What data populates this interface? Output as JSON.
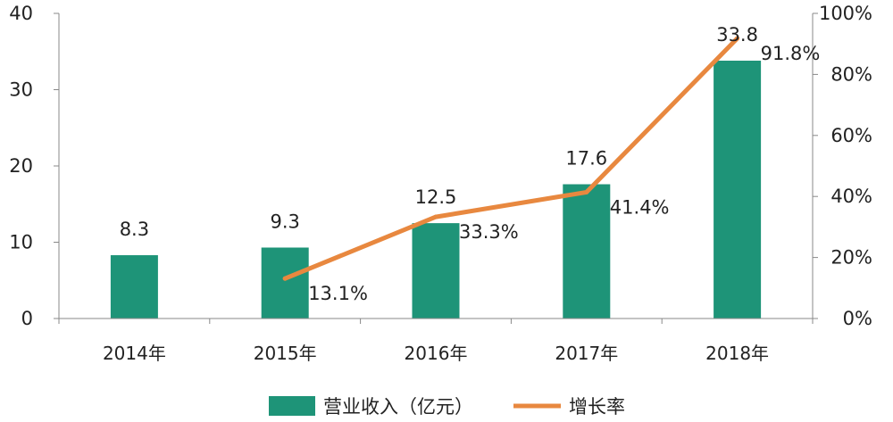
{
  "chart_data": {
    "type": "bar+line",
    "title": "",
    "categories": [
      "2014年",
      "2015年",
      "2016年",
      "2017年",
      "2018年"
    ],
    "series": [
      {
        "name": "营业收入（亿元）",
        "type": "bar",
        "axis": "left",
        "values": [
          8.3,
          9.3,
          12.5,
          17.6,
          33.8
        ],
        "labels": [
          "8.3",
          "9.3",
          "12.5",
          "17.6",
          "33.8"
        ],
        "color": "#1e9478"
      },
      {
        "name": "增长率",
        "type": "line",
        "axis": "right",
        "values": [
          null,
          13.1,
          33.3,
          41.4,
          91.8
        ],
        "labels": [
          "",
          "13.1%",
          "33.3%",
          "41.4%",
          "91.8%"
        ],
        "color": "#e8883f"
      }
    ],
    "y_left": {
      "min": 0,
      "max": 40,
      "ticks": [
        "0",
        "10",
        "20",
        "30",
        "40"
      ]
    },
    "y_right": {
      "min": 0,
      "max": 100,
      "ticks": [
        "0%",
        "20%",
        "40%",
        "60%",
        "80%",
        "100%"
      ]
    },
    "grid": false,
    "legend_position": "bottom"
  }
}
